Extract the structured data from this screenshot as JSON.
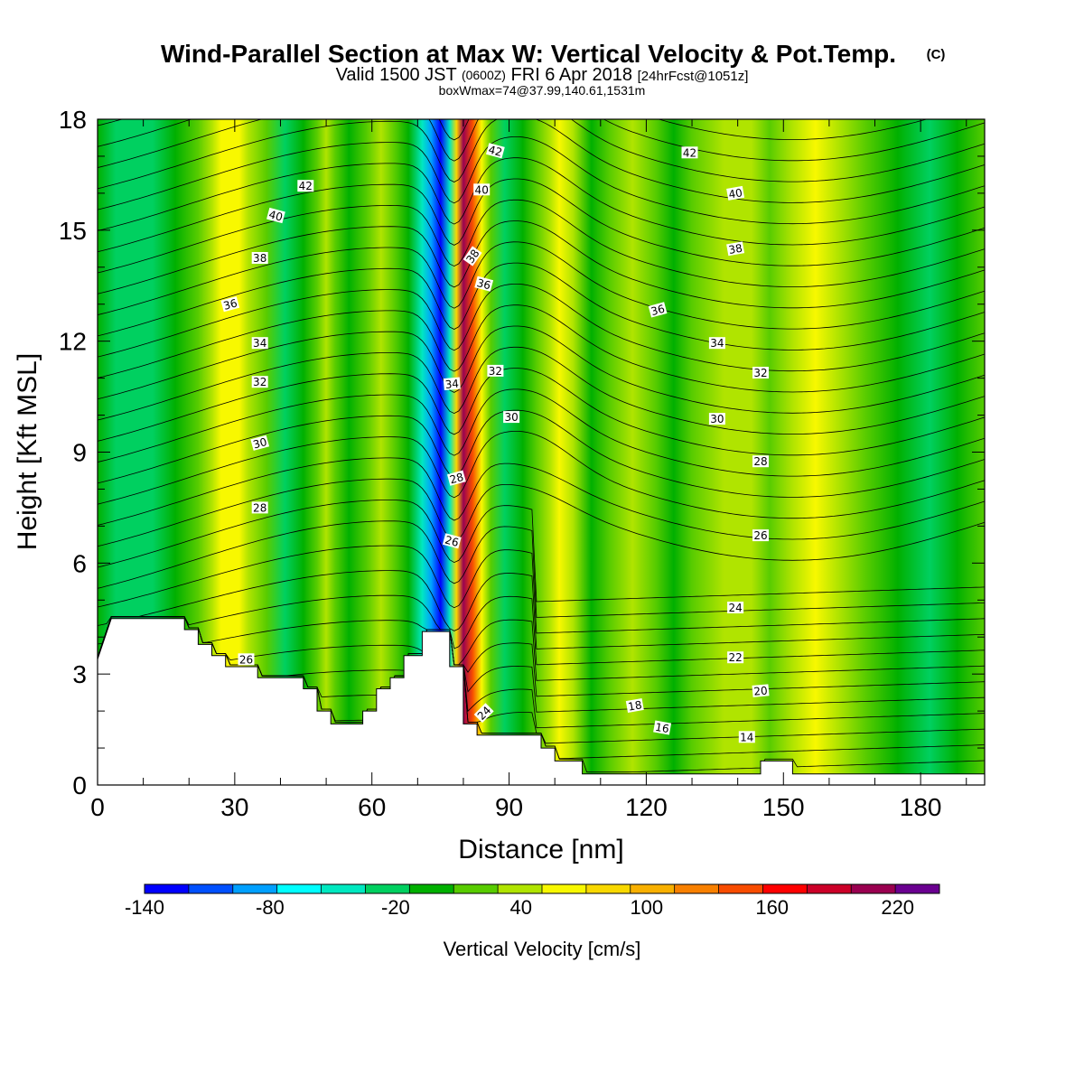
{
  "chart_data": {
    "type": "heatmap",
    "title": "Wind-Parallel Section at Max W: Vertical Velocity & Pot.Temp.",
    "title_mark": "(C)",
    "subtitle_parts": [
      "Valid 1500 JST",
      "(0600Z)",
      "FRI 6 Apr 2018",
      "[24hrFcst@1051z]"
    ],
    "subtitle2": "boxWmax=74@37.99,140.61,1531m",
    "xlabel": "Distance [nm]",
    "ylabel": "Height [Kft MSL]",
    "xlim": [
      0,
      194
    ],
    "ylim": [
      0,
      18
    ],
    "x_ticks": [
      "0",
      "30",
      "60",
      "90",
      "120",
      "150",
      "180"
    ],
    "y_ticks": [
      "0",
      "3",
      "6",
      "9",
      "12",
      "15",
      "18"
    ],
    "colorbar": {
      "label": "Vertical Velocity [cm/s]",
      "min": -140,
      "max": 240,
      "step": 20,
      "tick_labels": [
        "-140",
        "-80",
        "-20",
        "40",
        "100",
        "160",
        "220"
      ],
      "colors": [
        "#0000ff",
        "#0050ff",
        "#00a0ff",
        "#00ffff",
        "#00e8c0",
        "#00d060",
        "#00b000",
        "#58cc00",
        "#b0e400",
        "#f8f800",
        "#f8d800",
        "#f8b000",
        "#f88000",
        "#f84c00",
        "#ff0000",
        "#cc0028",
        "#9a0050",
        "#6a0090"
      ]
    },
    "velocity_columns": [
      {
        "x": 0,
        "v": -15
      },
      {
        "x": 4,
        "v": -25
      },
      {
        "x": 8,
        "v": -25
      },
      {
        "x": 12,
        "v": -40
      },
      {
        "x": 17,
        "v": -10
      },
      {
        "x": 22,
        "v": 10
      },
      {
        "x": 25,
        "v": 30
      },
      {
        "x": 27,
        "v": 45
      },
      {
        "x": 29,
        "v": 50
      },
      {
        "x": 31,
        "v": 40
      },
      {
        "x": 33,
        "v": 25
      },
      {
        "x": 37,
        "v": 0
      },
      {
        "x": 41,
        "v": -30
      },
      {
        "x": 45,
        "v": -15
      },
      {
        "x": 48,
        "v": 10
      },
      {
        "x": 50,
        "v": 35
      },
      {
        "x": 52,
        "v": 15
      },
      {
        "x": 55,
        "v": -20
      },
      {
        "x": 59,
        "v": 10
      },
      {
        "x": 62,
        "v": 30
      },
      {
        "x": 65,
        "v": 5
      },
      {
        "x": 68,
        "v": -20
      },
      {
        "x": 71,
        "v": -60
      },
      {
        "x": 73,
        "v": -100
      },
      {
        "x": 75,
        "v": -140
      },
      {
        "x": 77,
        "v": -60
      },
      {
        "x": 78.5,
        "v": 60
      },
      {
        "x": 80,
        "v": 180
      },
      {
        "x": 82,
        "v": 120
      },
      {
        "x": 84,
        "v": 50
      },
      {
        "x": 86,
        "v": 15
      },
      {
        "x": 89,
        "v": -30
      },
      {
        "x": 93,
        "v": -10
      },
      {
        "x": 96,
        "v": 15
      },
      {
        "x": 99,
        "v": 30
      },
      {
        "x": 101,
        "v": 45
      },
      {
        "x": 104,
        "v": 20
      },
      {
        "x": 108,
        "v": -10
      },
      {
        "x": 112,
        "v": 15
      },
      {
        "x": 117,
        "v": 30
      },
      {
        "x": 122,
        "v": 5
      },
      {
        "x": 126,
        "v": -10
      },
      {
        "x": 130,
        "v": 10
      },
      {
        "x": 137,
        "v": 28
      },
      {
        "x": 143,
        "v": 20
      },
      {
        "x": 147,
        "v": 5
      },
      {
        "x": 152,
        "v": 25
      },
      {
        "x": 157,
        "v": 40
      },
      {
        "x": 162,
        "v": 20
      },
      {
        "x": 168,
        "v": 0
      },
      {
        "x": 175,
        "v": -15
      },
      {
        "x": 182,
        "v": -25
      },
      {
        "x": 188,
        "v": -10
      },
      {
        "x": 194,
        "v": 0
      }
    ],
    "terrain": [
      [
        0,
        3.4
      ],
      [
        3,
        4.5
      ],
      [
        13,
        4.5
      ],
      [
        19,
        4.5
      ],
      [
        19,
        4.2
      ],
      [
        22,
        4.2
      ],
      [
        22,
        3.8
      ],
      [
        25,
        3.8
      ],
      [
        25,
        3.5
      ],
      [
        28,
        3.5
      ],
      [
        28,
        3.2
      ],
      [
        35,
        3.2
      ],
      [
        35,
        2.9
      ],
      [
        45,
        2.9
      ],
      [
        45,
        2.6
      ],
      [
        48,
        2.6
      ],
      [
        48,
        2.0
      ],
      [
        51,
        2.0
      ],
      [
        51,
        1.65
      ],
      [
        58,
        1.65
      ],
      [
        58,
        2.0
      ],
      [
        61,
        2.0
      ],
      [
        61,
        2.6
      ],
      [
        64,
        2.6
      ],
      [
        64,
        2.9
      ],
      [
        67,
        2.9
      ],
      [
        67,
        3.5
      ],
      [
        71,
        3.5
      ],
      [
        71,
        4.15
      ],
      [
        77,
        4.15
      ],
      [
        77,
        3.2
      ],
      [
        80,
        3.2
      ],
      [
        80,
        1.65
      ],
      [
        83,
        1.65
      ],
      [
        83,
        1.35
      ],
      [
        97,
        1.35
      ],
      [
        97,
        1.0
      ],
      [
        100,
        1.0
      ],
      [
        100,
        0.65
      ],
      [
        106,
        0.65
      ],
      [
        106,
        0.3
      ],
      [
        145,
        0.3
      ],
      [
        145,
        0.65
      ],
      [
        152,
        0.65
      ],
      [
        152,
        0.3
      ],
      [
        194,
        0.3
      ]
    ],
    "theta_levels": {
      "min": 12,
      "max": 44,
      "step": 1
    },
    "theta_contour_labels": [
      {
        "x": 45.5,
        "y": 16.2,
        "text": "42",
        "rot": 0
      },
      {
        "x": 39,
        "y": 15.4,
        "text": "40",
        "rot": 15
      },
      {
        "x": 35.5,
        "y": 14.25,
        "text": "38",
        "rot": 0
      },
      {
        "x": 29,
        "y": 13.0,
        "text": "36",
        "rot": -15
      },
      {
        "x": 35.5,
        "y": 11.95,
        "text": "34",
        "rot": 0
      },
      {
        "x": 35.5,
        "y": 10.9,
        "text": "32",
        "rot": 0
      },
      {
        "x": 35.5,
        "y": 9.25,
        "text": "30",
        "rot": -15
      },
      {
        "x": 35.5,
        "y": 7.5,
        "text": "28",
        "rot": 0
      },
      {
        "x": 32.5,
        "y": 3.4,
        "text": "26",
        "rot": 0
      },
      {
        "x": 87,
        "y": 17.15,
        "text": "42",
        "rot": 15
      },
      {
        "x": 84,
        "y": 16.1,
        "text": "40",
        "rot": 0
      },
      {
        "x": 82,
        "y": 14.3,
        "text": "38",
        "rot": -55
      },
      {
        "x": 84.5,
        "y": 13.55,
        "text": "36",
        "rot": 15
      },
      {
        "x": 77.5,
        "y": 10.85,
        "text": "34",
        "rot": -5
      },
      {
        "x": 87,
        "y": 11.2,
        "text": "32",
        "rot": 0
      },
      {
        "x": 90.5,
        "y": 9.95,
        "text": "30",
        "rot": 0
      },
      {
        "x": 78.5,
        "y": 8.3,
        "text": "28",
        "rot": -15
      },
      {
        "x": 77.5,
        "y": 6.6,
        "text": "26",
        "rot": 15
      },
      {
        "x": 84.5,
        "y": 1.95,
        "text": "24",
        "rot": -45
      },
      {
        "x": 129.5,
        "y": 17.1,
        "text": "42",
        "rot": 0
      },
      {
        "x": 139.5,
        "y": 16.0,
        "text": "40",
        "rot": -10
      },
      {
        "x": 139.5,
        "y": 14.5,
        "text": "38",
        "rot": -10
      },
      {
        "x": 122.5,
        "y": 12.85,
        "text": "36",
        "rot": -15
      },
      {
        "x": 135.5,
        "y": 11.95,
        "text": "34",
        "rot": 0
      },
      {
        "x": 145,
        "y": 11.15,
        "text": "32",
        "rot": 0
      },
      {
        "x": 135.5,
        "y": 9.9,
        "text": "30",
        "rot": 0
      },
      {
        "x": 145,
        "y": 8.75,
        "text": "28",
        "rot": 0
      },
      {
        "x": 145,
        "y": 6.75,
        "text": "26",
        "rot": 0
      },
      {
        "x": 139.5,
        "y": 4.8,
        "text": "24",
        "rot": 0
      },
      {
        "x": 139.5,
        "y": 3.45,
        "text": "22",
        "rot": 0
      },
      {
        "x": 145,
        "y": 2.55,
        "text": "20",
        "rot": -5
      },
      {
        "x": 117.5,
        "y": 2.15,
        "text": "18",
        "rot": -10
      },
      {
        "x": 123.5,
        "y": 1.55,
        "text": "16",
        "rot": 10
      },
      {
        "x": 142,
        "y": 1.3,
        "text": "14",
        "rot": 0
      }
    ],
    "grid": false
  }
}
